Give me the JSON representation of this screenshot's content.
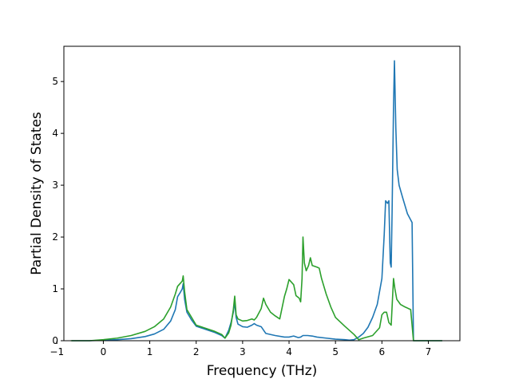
{
  "chart_data": {
    "type": "line",
    "title": "",
    "xlabel": "Frequency (THz)",
    "ylabel": "Partial Density of States",
    "xlim": [
      -0.85,
      7.68
    ],
    "ylim": [
      0,
      5.68
    ],
    "xticks": [
      -1,
      0,
      1,
      2,
      3,
      4,
      5,
      6,
      7
    ],
    "yticks": [
      0,
      1,
      2,
      3,
      4,
      5
    ],
    "grid": false,
    "legend": "none",
    "series": [
      {
        "color": "#1f77b4",
        "x": [
          -0.68,
          -0.3,
          0,
          0.3,
          0.6,
          0.9,
          1.1,
          1.3,
          1.45,
          1.55,
          1.6,
          1.65,
          1.7,
          1.72,
          1.75,
          1.8,
          1.9,
          2.0,
          2.2,
          2.4,
          2.55,
          2.62,
          2.7,
          2.75,
          2.8,
          2.83,
          2.86,
          2.9,
          3.0,
          3.1,
          3.2,
          3.25,
          3.3,
          3.4,
          3.5,
          3.7,
          3.9,
          4.0,
          4.1,
          4.2,
          4.25,
          4.3,
          4.4,
          4.5,
          4.6,
          4.8,
          5.0,
          5.2,
          5.3,
          5.4,
          5.5,
          5.6,
          5.7,
          5.8,
          5.9,
          6.0,
          6.05,
          6.08,
          6.12,
          6.15,
          6.18,
          6.2,
          6.22,
          6.25,
          6.27,
          6.3,
          6.33,
          6.37,
          6.45,
          6.55,
          6.65,
          6.68,
          6.75,
          7.0,
          7.3
        ],
        "y": [
          0,
          0,
          0.01,
          0.02,
          0.04,
          0.08,
          0.13,
          0.22,
          0.38,
          0.6,
          0.85,
          0.92,
          1.0,
          1.1,
          0.8,
          0.55,
          0.4,
          0.28,
          0.22,
          0.16,
          0.1,
          0.05,
          0.2,
          0.35,
          0.55,
          0.75,
          0.45,
          0.32,
          0.27,
          0.26,
          0.3,
          0.33,
          0.3,
          0.27,
          0.14,
          0.1,
          0.07,
          0.07,
          0.09,
          0.06,
          0.07,
          0.1,
          0.1,
          0.09,
          0.07,
          0.05,
          0.03,
          0.02,
          0.01,
          0.02,
          0.07,
          0.14,
          0.26,
          0.45,
          0.7,
          1.2,
          2.05,
          2.7,
          2.65,
          2.7,
          1.5,
          1.42,
          2.5,
          4.5,
          5.4,
          4.1,
          3.3,
          3.0,
          2.75,
          2.45,
          2.28,
          0,
          0,
          0,
          0
        ]
      },
      {
        "color": "#2ca02c",
        "x": [
          -0.7,
          -0.3,
          0,
          0.3,
          0.6,
          0.9,
          1.1,
          1.3,
          1.45,
          1.55,
          1.6,
          1.65,
          1.7,
          1.72,
          1.75,
          1.8,
          1.9,
          2.0,
          2.2,
          2.4,
          2.55,
          2.62,
          2.7,
          2.75,
          2.8,
          2.83,
          2.86,
          2.9,
          3.0,
          3.1,
          3.2,
          3.25,
          3.3,
          3.4,
          3.45,
          3.5,
          3.6,
          3.7,
          3.8,
          3.9,
          3.95,
          4.0,
          4.1,
          4.15,
          4.22,
          4.25,
          4.28,
          4.3,
          4.33,
          4.37,
          4.42,
          4.46,
          4.5,
          4.6,
          4.65,
          4.7,
          4.8,
          4.9,
          5.0,
          5.2,
          5.4,
          5.5,
          5.6,
          5.8,
          5.95,
          6.0,
          6.05,
          6.1,
          6.15,
          6.2,
          6.25,
          6.28,
          6.32,
          6.4,
          6.5,
          6.62,
          6.68,
          6.75,
          7.0,
          7.3
        ],
        "y": [
          0,
          0,
          0.02,
          0.05,
          0.1,
          0.18,
          0.27,
          0.42,
          0.65,
          0.9,
          1.05,
          1.1,
          1.15,
          1.25,
          0.95,
          0.6,
          0.45,
          0.3,
          0.24,
          0.18,
          0.12,
          0.05,
          0.15,
          0.3,
          0.6,
          0.86,
          0.5,
          0.42,
          0.38,
          0.39,
          0.42,
          0.4,
          0.45,
          0.62,
          0.82,
          0.7,
          0.55,
          0.48,
          0.42,
          0.85,
          1.0,
          1.18,
          1.08,
          0.87,
          0.82,
          0.75,
          1.2,
          2.0,
          1.5,
          1.35,
          1.45,
          1.6,
          1.45,
          1.42,
          1.4,
          1.2,
          0.9,
          0.65,
          0.45,
          0.28,
          0.12,
          0.02,
          0.05,
          0.1,
          0.25,
          0.5,
          0.55,
          0.55,
          0.35,
          0.3,
          1.2,
          1.0,
          0.8,
          0.7,
          0.65,
          0.6,
          0,
          0,
          0,
          0
        ]
      }
    ]
  }
}
